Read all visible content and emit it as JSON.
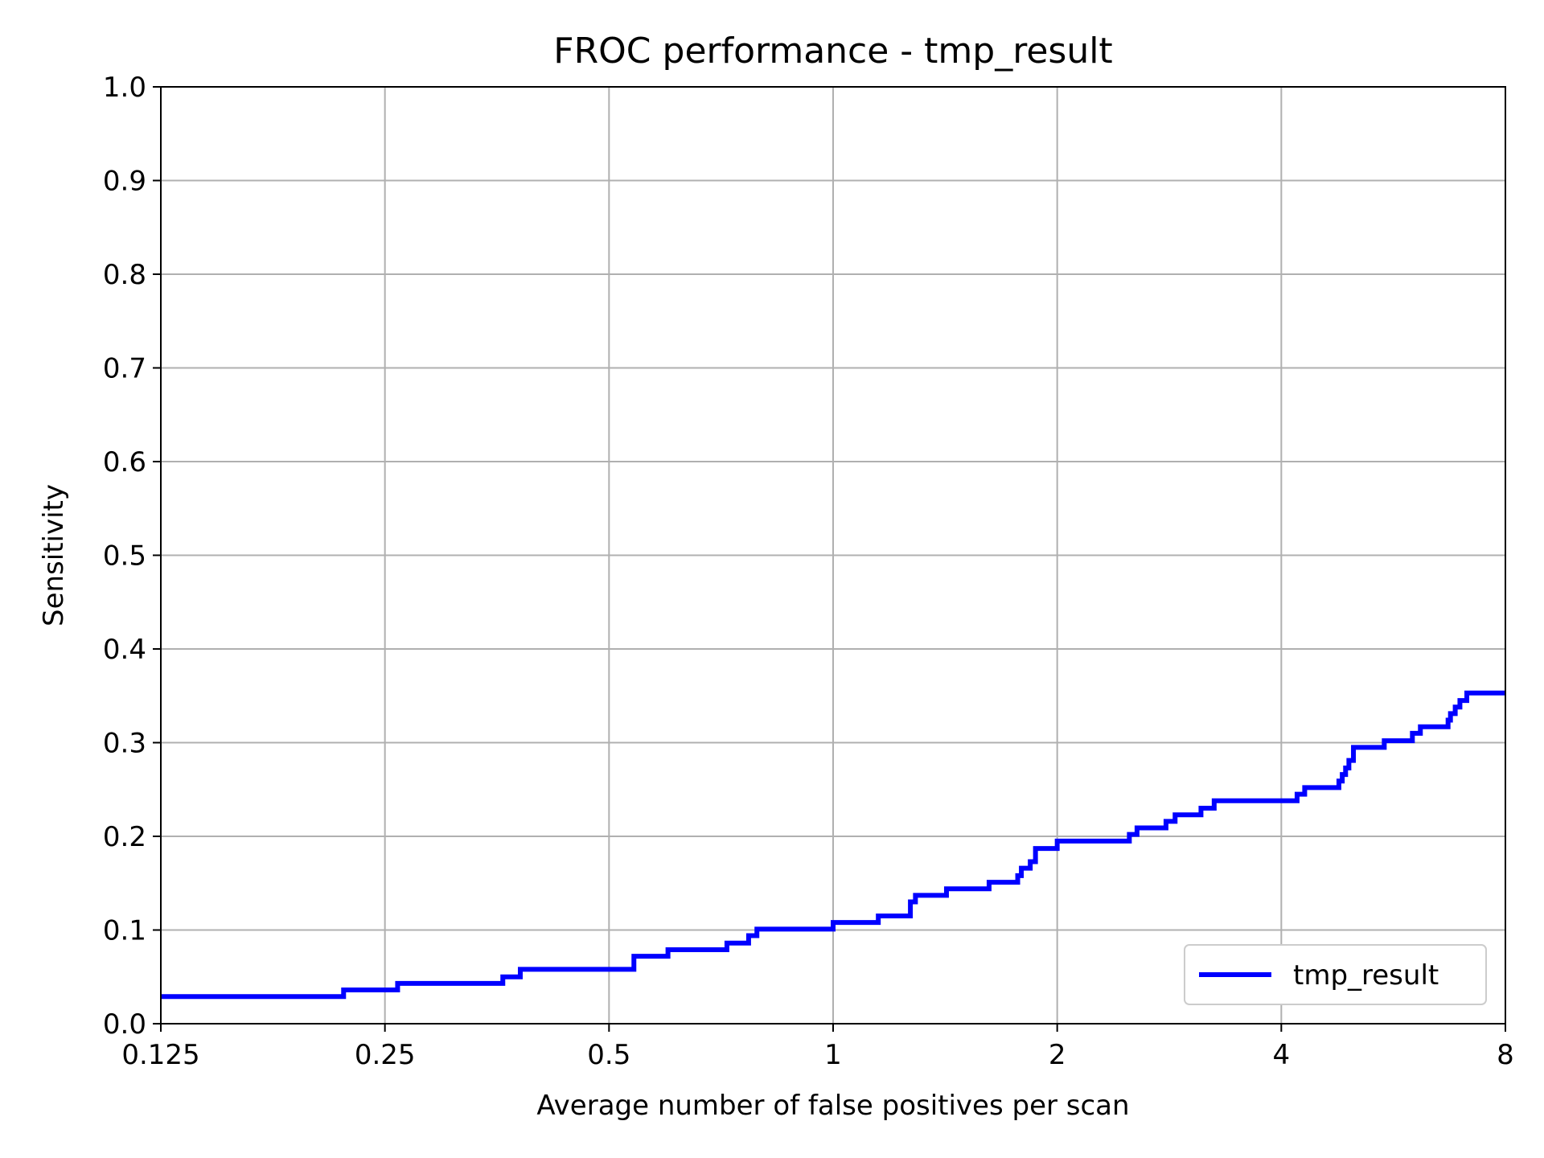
{
  "chart_data": {
    "type": "line",
    "title": "FROC performance - tmp_result",
    "xlabel": "Average number of false positives per scan",
    "ylabel": "Sensitivity",
    "x_scale": "log2",
    "xlim": [
      0.125,
      8
    ],
    "ylim": [
      0,
      1
    ],
    "x_ticks": [
      0.125,
      0.25,
      0.5,
      1,
      2,
      4,
      8
    ],
    "x_tick_labels": [
      "0.125",
      "0.25",
      "0.5",
      "1",
      "2",
      "4",
      "8"
    ],
    "y_ticks": [
      0,
      0.1,
      0.2,
      0.3,
      0.4,
      0.5,
      0.6,
      0.7,
      0.8,
      0.9,
      1.0
    ],
    "y_tick_labels": [
      "0.0",
      "0.1",
      "0.2",
      "0.3",
      "0.4",
      "0.5",
      "0.6",
      "0.7",
      "0.8",
      "0.9",
      "1.0"
    ],
    "grid": true,
    "legend_position": "bottom-right",
    "series": [
      {
        "name": "tmp_result",
        "color": "#0000ff",
        "step": true,
        "x": [
          0.125,
          0.22,
          0.26,
          0.36,
          0.38,
          0.54,
          0.6,
          0.72,
          0.77,
          0.79,
          1.0,
          1.15,
          1.27,
          1.29,
          1.42,
          1.62,
          1.77,
          1.79,
          1.84,
          1.87,
          2.0,
          2.5,
          2.56,
          2.8,
          2.88,
          3.12,
          3.25,
          4.2,
          4.3,
          4.78,
          4.83,
          4.88,
          4.93,
          5.0,
          5.5,
          6.0,
          6.15,
          6.7,
          6.75,
          6.85,
          6.95,
          7.1,
          8.0
        ],
        "y": [
          0.029,
          0.036,
          0.043,
          0.05,
          0.058,
          0.072,
          0.079,
          0.086,
          0.094,
          0.101,
          0.108,
          0.115,
          0.13,
          0.137,
          0.144,
          0.151,
          0.158,
          0.166,
          0.173,
          0.187,
          0.195,
          0.202,
          0.209,
          0.216,
          0.223,
          0.23,
          0.238,
          0.245,
          0.252,
          0.259,
          0.266,
          0.273,
          0.281,
          0.295,
          0.302,
          0.31,
          0.317,
          0.324,
          0.331,
          0.338,
          0.345,
          0.353,
          0.353
        ]
      }
    ]
  }
}
